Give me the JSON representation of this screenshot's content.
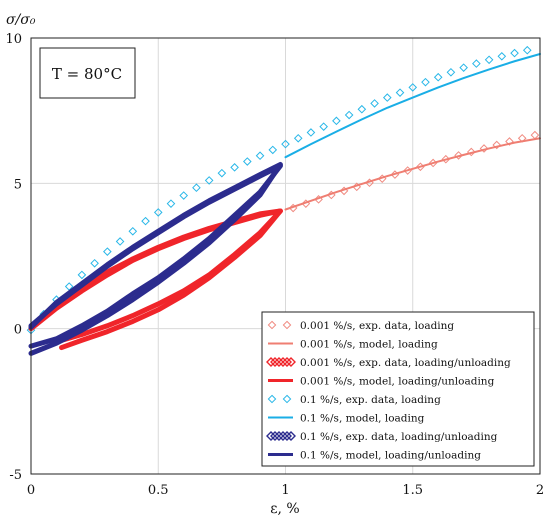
{
  "chart_data": {
    "type": "line",
    "xlabel": "ε, %",
    "ylabel": "σ/σ₀",
    "xlim": [
      0,
      2
    ],
    "ylim": [
      -5,
      10
    ],
    "x_ticks": [
      "0",
      "0.5",
      "1",
      "1.5",
      "2"
    ],
    "y_ticks": [
      "10",
      "5",
      "0",
      "-5"
    ],
    "grid": true,
    "legend_position": "bottom-right",
    "annotation": "T = 80°C",
    "colors": {
      "red_marker": "#f08a80",
      "red_line": "#ef7e72",
      "red_loop": "#f0252a",
      "blue_marker": "#29b7e8",
      "blue_line": "#1aaee6",
      "navy_loop": "#2c2c8e"
    },
    "series": [
      {
        "name": "0.001 %/s, exp. data, loading",
        "kind": "markers",
        "color": "#f08a80",
        "x": [
          1.03,
          1.08,
          1.13,
          1.18,
          1.23,
          1.28,
          1.33,
          1.38,
          1.43,
          1.48,
          1.53,
          1.58,
          1.63,
          1.68,
          1.73,
          1.78,
          1.83,
          1.88,
          1.93,
          1.98
        ],
        "y": [
          4.15,
          4.3,
          4.45,
          4.6,
          4.74,
          4.88,
          5.02,
          5.16,
          5.3,
          5.44,
          5.57,
          5.7,
          5.83,
          5.96,
          6.08,
          6.2,
          6.32,
          6.44,
          6.55,
          6.66
        ]
      },
      {
        "name": "0.001 %/s, model, loading",
        "kind": "line",
        "color": "#ef7e72",
        "x": [
          1.0,
          1.1,
          1.2,
          1.3,
          1.4,
          1.5,
          1.6,
          1.7,
          1.8,
          1.9,
          2.0
        ],
        "y": [
          4.1,
          4.4,
          4.7,
          4.98,
          5.25,
          5.5,
          5.75,
          5.98,
          6.2,
          6.4,
          6.55
        ]
      },
      {
        "name": "0.001 %/s, exp. data, loading/unloading",
        "kind": "loop",
        "color": "#f0252a",
        "x": [
          0.0,
          0.1,
          0.2,
          0.3,
          0.4,
          0.5,
          0.6,
          0.7,
          0.8,
          0.9,
          0.98,
          0.9,
          0.8,
          0.7,
          0.6,
          0.5,
          0.4,
          0.3,
          0.2,
          0.12
        ],
        "y": [
          0.0,
          0.7,
          1.3,
          1.85,
          2.35,
          2.75,
          3.1,
          3.4,
          3.65,
          3.9,
          4.05,
          3.3,
          2.55,
          1.85,
          1.3,
          0.85,
          0.45,
          0.1,
          -0.2,
          -0.4
        ]
      },
      {
        "name": "0.001 %/s, model, loading/unloading",
        "kind": "loop",
        "color": "#f0252a",
        "x": [
          0.0,
          0.1,
          0.2,
          0.3,
          0.4,
          0.5,
          0.6,
          0.7,
          0.8,
          0.9,
          0.98,
          0.9,
          0.8,
          0.7,
          0.6,
          0.5,
          0.4,
          0.3,
          0.2,
          0.12
        ],
        "y": [
          0.05,
          0.8,
          1.4,
          1.95,
          2.4,
          2.8,
          3.15,
          3.45,
          3.7,
          3.95,
          4.05,
          3.2,
          2.45,
          1.75,
          1.15,
          0.65,
          0.25,
          -0.1,
          -0.4,
          -0.65
        ]
      },
      {
        "name": "0.1 %/s, exp. data, loading",
        "kind": "markers",
        "color": "#29b7e8",
        "x": [
          0.0,
          0.05,
          0.1,
          0.15,
          0.2,
          0.25,
          0.3,
          0.35,
          0.4,
          0.45,
          0.5,
          0.55,
          0.6,
          0.65,
          0.7,
          0.75,
          0.8,
          0.85,
          0.9,
          0.95,
          1.0,
          1.05,
          1.1,
          1.15,
          1.2,
          1.25,
          1.3,
          1.35,
          1.4,
          1.45,
          1.5,
          1.55,
          1.6,
          1.65,
          1.7,
          1.75,
          1.8,
          1.85,
          1.9,
          1.95
        ],
        "y": [
          -0.05,
          0.5,
          1.0,
          1.45,
          1.85,
          2.25,
          2.65,
          3.0,
          3.35,
          3.7,
          4.0,
          4.3,
          4.58,
          4.85,
          5.1,
          5.35,
          5.55,
          5.75,
          5.95,
          6.15,
          6.35,
          6.55,
          6.75,
          6.95,
          7.15,
          7.35,
          7.55,
          7.75,
          7.95,
          8.12,
          8.3,
          8.48,
          8.65,
          8.82,
          8.98,
          9.12,
          9.25,
          9.37,
          9.48,
          9.58
        ]
      },
      {
        "name": "0.1 %/s, model, loading",
        "kind": "line",
        "color": "#1aaee6",
        "x": [
          1.0,
          1.1,
          1.2,
          1.3,
          1.4,
          1.5,
          1.6,
          1.7,
          1.8,
          1.9,
          2.0
        ],
        "y": [
          5.9,
          6.35,
          6.78,
          7.2,
          7.6,
          7.95,
          8.3,
          8.62,
          8.92,
          9.2,
          9.45
        ]
      },
      {
        "name": "0.1 %/s, exp. data, loading/unloading",
        "kind": "loop",
        "color": "#2c2c8e",
        "x": [
          0.0,
          0.1,
          0.2,
          0.3,
          0.4,
          0.5,
          0.6,
          0.7,
          0.8,
          0.9,
          0.98,
          0.9,
          0.8,
          0.7,
          0.6,
          0.5,
          0.4,
          0.3,
          0.2,
          0.1,
          0.0
        ],
        "y": [
          0.1,
          0.85,
          1.5,
          2.15,
          2.75,
          3.3,
          3.85,
          4.35,
          4.8,
          5.25,
          5.6,
          4.7,
          3.9,
          3.1,
          2.4,
          1.75,
          1.2,
          0.6,
          0.1,
          -0.35,
          -0.6
        ]
      },
      {
        "name": "0.1 %/s, model, loading/unloading",
        "kind": "loop",
        "color": "#2c2c8e",
        "x": [
          0.0,
          0.1,
          0.2,
          0.3,
          0.4,
          0.5,
          0.6,
          0.7,
          0.8,
          0.9,
          0.98,
          0.9,
          0.8,
          0.7,
          0.6,
          0.5,
          0.4,
          0.3,
          0.2,
          0.1,
          0.0
        ],
        "y": [
          0.05,
          0.9,
          1.55,
          2.2,
          2.8,
          3.35,
          3.9,
          4.4,
          4.85,
          5.3,
          5.65,
          4.6,
          3.75,
          2.95,
          2.25,
          1.6,
          1.0,
          0.45,
          -0.05,
          -0.5,
          -0.85
        ]
      }
    ],
    "legend": [
      {
        "label": "0.001 %/s, exp. data, loading",
        "symbol": "diamond-pair",
        "color": "#f08a80"
      },
      {
        "label": "0.001 %/s, model, loading",
        "symbol": "line",
        "color": "#ef7e72"
      },
      {
        "label": "0.001 %/s, exp. data, loading/unloading",
        "symbol": "diamond-cluster",
        "color": "#f0252a"
      },
      {
        "label": "0.001 %/s, model, loading/unloading",
        "symbol": "line",
        "color": "#f0252a"
      },
      {
        "label": "0.1 %/s, exp. data, loading",
        "symbol": "diamond-pair",
        "color": "#29b7e8"
      },
      {
        "label": "0.1 %/s, model, loading",
        "symbol": "line",
        "color": "#1aaee6"
      },
      {
        "label": "0.1 %/s, exp. data, loading/unloading",
        "symbol": "diamond-cluster",
        "color": "#2c2c8e"
      },
      {
        "label": "0.1 %/s, model, loading/unloading",
        "symbol": "line",
        "color": "#2c2c8e"
      }
    ]
  }
}
